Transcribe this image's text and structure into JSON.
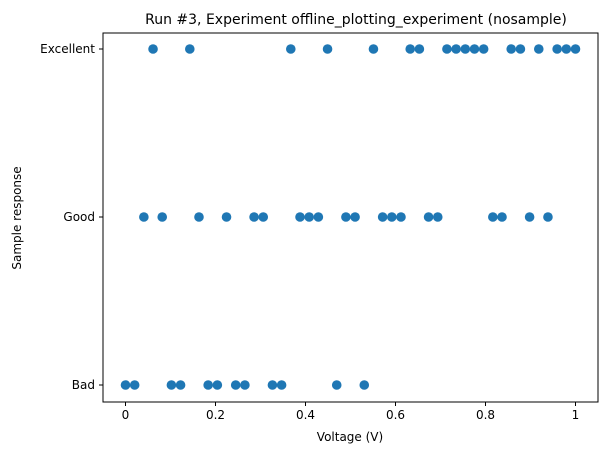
{
  "chart_data": {
    "type": "scatter",
    "title": "Run #3, Experiment offline_plotting_experiment (nosample)",
    "xlabel": "Voltage (V)",
    "ylabel": "Sample response",
    "xlim": [
      -0.05,
      1.05
    ],
    "xticks": [
      0,
      0.2,
      0.4,
      0.6,
      0.8,
      1
    ],
    "xtick_labels": [
      "0",
      "0.2",
      "0.4",
      "0.6",
      "0.8",
      "1"
    ],
    "categories": [
      "Bad",
      "Good",
      "Excellent"
    ],
    "grid": false,
    "marker_color": "#1f77b4",
    "points": [
      {
        "x": 0.0,
        "y": "Bad"
      },
      {
        "x": 0.0204,
        "y": "Bad"
      },
      {
        "x": 0.102,
        "y": "Bad"
      },
      {
        "x": 0.1224,
        "y": "Bad"
      },
      {
        "x": 0.1837,
        "y": "Bad"
      },
      {
        "x": 0.2041,
        "y": "Bad"
      },
      {
        "x": 0.2449,
        "y": "Bad"
      },
      {
        "x": 0.2653,
        "y": "Bad"
      },
      {
        "x": 0.3265,
        "y": "Bad"
      },
      {
        "x": 0.3469,
        "y": "Bad"
      },
      {
        "x": 0.4694,
        "y": "Bad"
      },
      {
        "x": 0.5306,
        "y": "Bad"
      },
      {
        "x": 0.0408,
        "y": "Good"
      },
      {
        "x": 0.0816,
        "y": "Good"
      },
      {
        "x": 0.1633,
        "y": "Good"
      },
      {
        "x": 0.2245,
        "y": "Good"
      },
      {
        "x": 0.2857,
        "y": "Good"
      },
      {
        "x": 0.3061,
        "y": "Good"
      },
      {
        "x": 0.3878,
        "y": "Good"
      },
      {
        "x": 0.4082,
        "y": "Good"
      },
      {
        "x": 0.4286,
        "y": "Good"
      },
      {
        "x": 0.4898,
        "y": "Good"
      },
      {
        "x": 0.5102,
        "y": "Good"
      },
      {
        "x": 0.5714,
        "y": "Good"
      },
      {
        "x": 0.5918,
        "y": "Good"
      },
      {
        "x": 0.6122,
        "y": "Good"
      },
      {
        "x": 0.6735,
        "y": "Good"
      },
      {
        "x": 0.6939,
        "y": "Good"
      },
      {
        "x": 0.8163,
        "y": "Good"
      },
      {
        "x": 0.8367,
        "y": "Good"
      },
      {
        "x": 0.898,
        "y": "Good"
      },
      {
        "x": 0.9388,
        "y": "Good"
      },
      {
        "x": 0.0612,
        "y": "Excellent"
      },
      {
        "x": 0.1429,
        "y": "Excellent"
      },
      {
        "x": 0.3673,
        "y": "Excellent"
      },
      {
        "x": 0.449,
        "y": "Excellent"
      },
      {
        "x": 0.551,
        "y": "Excellent"
      },
      {
        "x": 0.6327,
        "y": "Excellent"
      },
      {
        "x": 0.6531,
        "y": "Excellent"
      },
      {
        "x": 0.7143,
        "y": "Excellent"
      },
      {
        "x": 0.7347,
        "y": "Excellent"
      },
      {
        "x": 0.7551,
        "y": "Excellent"
      },
      {
        "x": 0.7755,
        "y": "Excellent"
      },
      {
        "x": 0.7959,
        "y": "Excellent"
      },
      {
        "x": 0.8571,
        "y": "Excellent"
      },
      {
        "x": 0.8776,
        "y": "Excellent"
      },
      {
        "x": 0.9184,
        "y": "Excellent"
      },
      {
        "x": 0.9592,
        "y": "Excellent"
      },
      {
        "x": 0.9796,
        "y": "Excellent"
      },
      {
        "x": 1.0,
        "y": "Excellent"
      }
    ]
  }
}
